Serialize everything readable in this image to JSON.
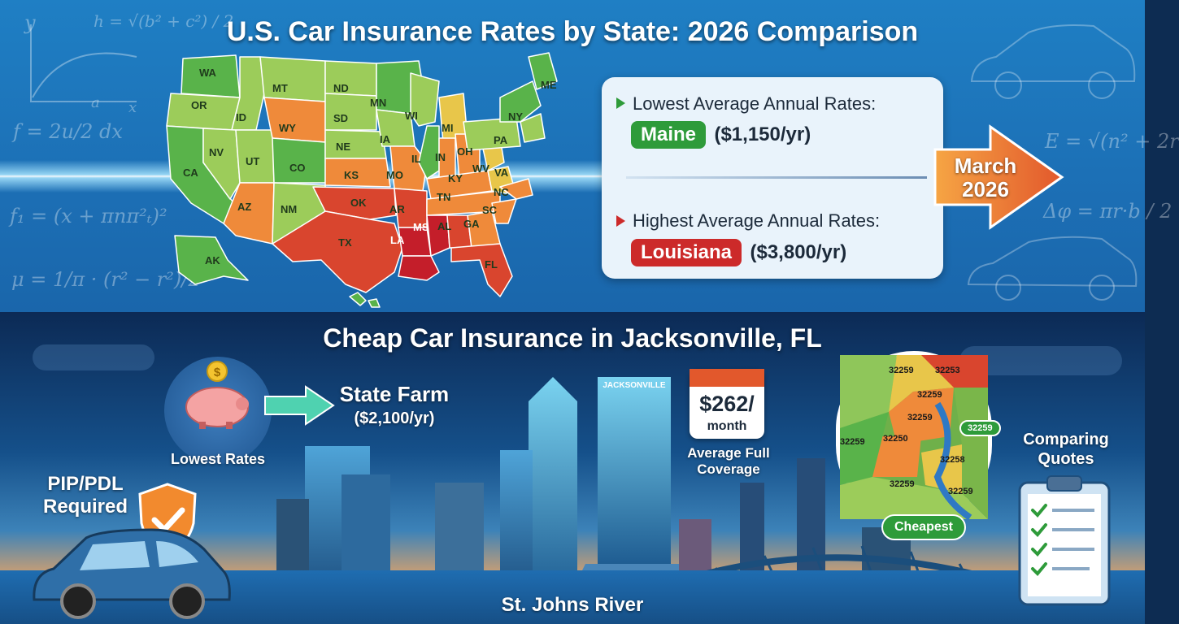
{
  "top": {
    "title": "U.S. Car Insurance Rates by State: 2026 Comparison",
    "states": [
      "WA",
      "OR",
      "ID",
      "MT",
      "ND",
      "SD",
      "MN",
      "WI",
      "MI",
      "ME",
      "NY",
      "PA",
      "CA",
      "NV",
      "UT",
      "WY",
      "CO",
      "NE",
      "IA",
      "IL",
      "IN",
      "OH",
      "WV",
      "VA",
      "KS",
      "MO",
      "KY",
      "NC",
      "TN",
      "AZ",
      "NM",
      "OK",
      "AR",
      "MS",
      "AL",
      "GA",
      "SC",
      "TX",
      "LA",
      "FL",
      "AK"
    ],
    "lowest": {
      "heading": "Lowest Average Annual Rates:",
      "state": "Maine",
      "value": "($1,150/yr)",
      "color": "#2e9b3a"
    },
    "highest": {
      "heading": "Highest Average Annual Rates:",
      "state": "Louisiana",
      "value": "($3,800/yr)",
      "color": "#cc2a2a"
    },
    "date_line1": "March",
    "date_line2": "2026",
    "math": {
      "m1": "y",
      "m2": "h = √(b² + c²) / 2",
      "m3": "f = 2u/2 dx",
      "m4": "a",
      "m5": "x",
      "m6": "f₁ = (x + πnπ²ₜ)²",
      "m7": "μ = 1/π · (r² − r²)/2",
      "m8": "E = √(n² + 2r",
      "m9": "Δφ = πr·b / 2"
    }
  },
  "bottom": {
    "title": "Cheap Car Insurance in Jacksonville, FL",
    "lowest_rates": "Lowest Rates",
    "provider": "State Farm",
    "provider_rate": "($2,100/yr)",
    "monthly_value": "$262/",
    "monthly_unit": "month",
    "avg_coverage_line1": "Average Full",
    "avg_coverage_line2": "Coverage",
    "building_sign": "JACKSONVILLE",
    "pip_line1": "PIP/PDL",
    "pip_line2": "Required",
    "comparing_line1": "Comparing",
    "comparing_line2": "Quotes",
    "river": "St. Johns River",
    "cheapest": "Cheapest",
    "zips": [
      "32259",
      "32253",
      "32259",
      "32259",
      "32259",
      "32250",
      "32258",
      "32259",
      "32259",
      "32259"
    ]
  },
  "colors": {
    "green": "#59b34a",
    "light_green": "#9ccc5a",
    "yellow": "#e8c64a",
    "orange": "#ef8a3a",
    "red": "#d9452e",
    "dark_red": "#c41e2a"
  }
}
